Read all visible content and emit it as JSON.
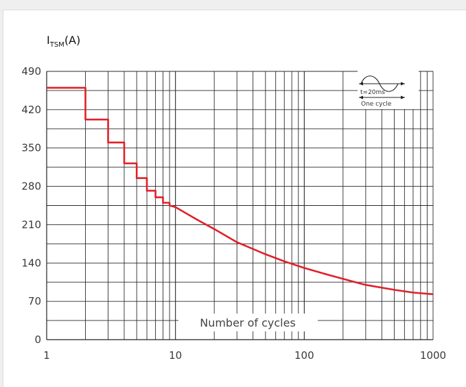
{
  "chart_data": {
    "type": "line",
    "ylabel_main": "I",
    "ylabel_sub": "TSM",
    "ylabel_unit": "(A)",
    "xlabel": "Number of cycles",
    "x_scale": "log",
    "xlim": [
      1,
      1000
    ],
    "ylim": [
      0,
      490
    ],
    "x_ticks": [
      1,
      10,
      100,
      1000
    ],
    "x_tick_labels": [
      "1",
      "10",
      "100",
      "1000"
    ],
    "y_ticks": [
      0,
      70,
      140,
      210,
      280,
      350,
      420,
      490
    ],
    "y_tick_labels": [
      "0",
      "70",
      "140",
      "210",
      "280",
      "350",
      "420",
      "490"
    ],
    "grid": true,
    "line_color": "#e0202a",
    "series": [
      {
        "x": [
          1,
          2,
          2,
          3,
          3,
          4,
          4,
          5,
          5,
          6,
          6,
          7,
          7,
          8,
          8,
          9,
          9,
          10,
          15,
          20,
          30,
          50,
          70,
          100,
          150,
          200,
          300,
          500,
          700,
          1000
        ],
        "y": [
          460,
          460,
          402,
          402,
          360,
          360,
          322,
          322,
          295,
          295,
          272,
          272,
          260,
          260,
          250,
          250,
          245,
          242,
          218,
          202,
          178,
          156,
          143,
          131,
          119,
          111,
          100,
          91,
          86,
          83
        ]
      }
    ],
    "inset": {
      "line1": "t=20ms",
      "line2": "One  cycle"
    }
  }
}
